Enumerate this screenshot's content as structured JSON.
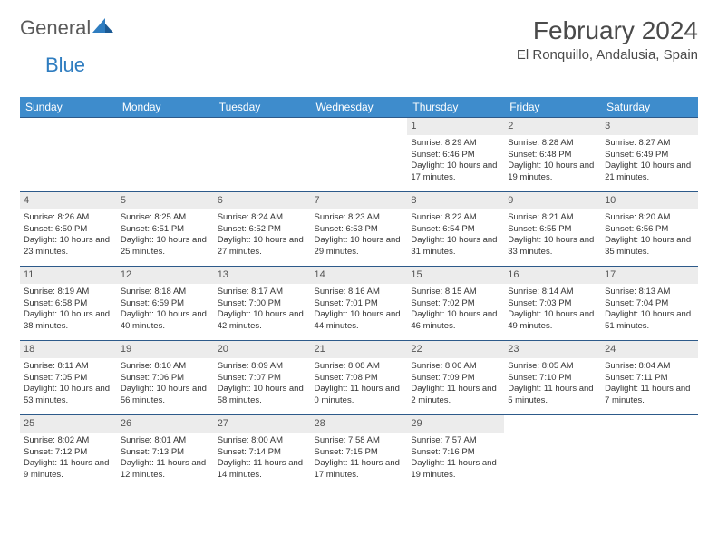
{
  "logo": {
    "general": "General",
    "blue": "Blue"
  },
  "title": {
    "month": "February 2024",
    "location": "El Ronquillo, Andalusia, Spain"
  },
  "colors": {
    "header_bg": "#3e8ccc",
    "header_text": "#ffffff",
    "daynum_bg": "#ececec",
    "row_border": "#2d5a8a",
    "logo_blue": "#2f7dc0",
    "text": "#333333"
  },
  "daynames": [
    "Sunday",
    "Monday",
    "Tuesday",
    "Wednesday",
    "Thursday",
    "Friday",
    "Saturday"
  ],
  "weeks": [
    [
      null,
      null,
      null,
      null,
      {
        "n": "1",
        "sr": "8:29 AM",
        "ss": "6:46 PM",
        "dl": "10 hours and 17 minutes."
      },
      {
        "n": "2",
        "sr": "8:28 AM",
        "ss": "6:48 PM",
        "dl": "10 hours and 19 minutes."
      },
      {
        "n": "3",
        "sr": "8:27 AM",
        "ss": "6:49 PM",
        "dl": "10 hours and 21 minutes."
      }
    ],
    [
      {
        "n": "4",
        "sr": "8:26 AM",
        "ss": "6:50 PM",
        "dl": "10 hours and 23 minutes."
      },
      {
        "n": "5",
        "sr": "8:25 AM",
        "ss": "6:51 PM",
        "dl": "10 hours and 25 minutes."
      },
      {
        "n": "6",
        "sr": "8:24 AM",
        "ss": "6:52 PM",
        "dl": "10 hours and 27 minutes."
      },
      {
        "n": "7",
        "sr": "8:23 AM",
        "ss": "6:53 PM",
        "dl": "10 hours and 29 minutes."
      },
      {
        "n": "8",
        "sr": "8:22 AM",
        "ss": "6:54 PM",
        "dl": "10 hours and 31 minutes."
      },
      {
        "n": "9",
        "sr": "8:21 AM",
        "ss": "6:55 PM",
        "dl": "10 hours and 33 minutes."
      },
      {
        "n": "10",
        "sr": "8:20 AM",
        "ss": "6:56 PM",
        "dl": "10 hours and 35 minutes."
      }
    ],
    [
      {
        "n": "11",
        "sr": "8:19 AM",
        "ss": "6:58 PM",
        "dl": "10 hours and 38 minutes."
      },
      {
        "n": "12",
        "sr": "8:18 AM",
        "ss": "6:59 PM",
        "dl": "10 hours and 40 minutes."
      },
      {
        "n": "13",
        "sr": "8:17 AM",
        "ss": "7:00 PM",
        "dl": "10 hours and 42 minutes."
      },
      {
        "n": "14",
        "sr": "8:16 AM",
        "ss": "7:01 PM",
        "dl": "10 hours and 44 minutes."
      },
      {
        "n": "15",
        "sr": "8:15 AM",
        "ss": "7:02 PM",
        "dl": "10 hours and 46 minutes."
      },
      {
        "n": "16",
        "sr": "8:14 AM",
        "ss": "7:03 PM",
        "dl": "10 hours and 49 minutes."
      },
      {
        "n": "17",
        "sr": "8:13 AM",
        "ss": "7:04 PM",
        "dl": "10 hours and 51 minutes."
      }
    ],
    [
      {
        "n": "18",
        "sr": "8:11 AM",
        "ss": "7:05 PM",
        "dl": "10 hours and 53 minutes."
      },
      {
        "n": "19",
        "sr": "8:10 AM",
        "ss": "7:06 PM",
        "dl": "10 hours and 56 minutes."
      },
      {
        "n": "20",
        "sr": "8:09 AM",
        "ss": "7:07 PM",
        "dl": "10 hours and 58 minutes."
      },
      {
        "n": "21",
        "sr": "8:08 AM",
        "ss": "7:08 PM",
        "dl": "11 hours and 0 minutes."
      },
      {
        "n": "22",
        "sr": "8:06 AM",
        "ss": "7:09 PM",
        "dl": "11 hours and 2 minutes."
      },
      {
        "n": "23",
        "sr": "8:05 AM",
        "ss": "7:10 PM",
        "dl": "11 hours and 5 minutes."
      },
      {
        "n": "24",
        "sr": "8:04 AM",
        "ss": "7:11 PM",
        "dl": "11 hours and 7 minutes."
      }
    ],
    [
      {
        "n": "25",
        "sr": "8:02 AM",
        "ss": "7:12 PM",
        "dl": "11 hours and 9 minutes."
      },
      {
        "n": "26",
        "sr": "8:01 AM",
        "ss": "7:13 PM",
        "dl": "11 hours and 12 minutes."
      },
      {
        "n": "27",
        "sr": "8:00 AM",
        "ss": "7:14 PM",
        "dl": "11 hours and 14 minutes."
      },
      {
        "n": "28",
        "sr": "7:58 AM",
        "ss": "7:15 PM",
        "dl": "11 hours and 17 minutes."
      },
      {
        "n": "29",
        "sr": "7:57 AM",
        "ss": "7:16 PM",
        "dl": "11 hours and 19 minutes."
      },
      null,
      null
    ]
  ],
  "labels": {
    "sunrise": "Sunrise: ",
    "sunset": "Sunset: ",
    "daylight": "Daylight: "
  }
}
